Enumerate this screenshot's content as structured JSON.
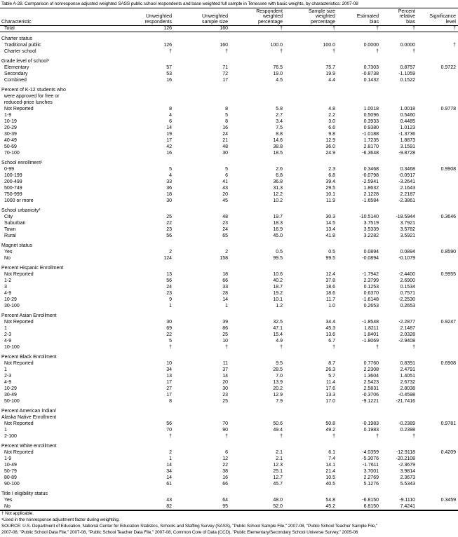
{
  "title": "Table A-28. Comparison of nonresponse adjusted weighted SASS public school respondents and base weighted full sample in Tenessee with basic weights, by characteristics: 2007-08",
  "headers": [
    "Characteristic",
    "Unweighted\nrespondents",
    "Unweighted\nsample size",
    "Respondent\nweighted\npercentage",
    "Sample size\nweighted\npercentage",
    "Estimated\nbias",
    "Percent\nrelative\nbias",
    "Significance\nlevel"
  ],
  "sections": [
    {
      "rows": [
        {
          "label": "Total",
          "cells": [
            "126",
            "160",
            "†",
            "†",
            "†",
            "†",
            "†"
          ]
        }
      ]
    },
    {
      "label_lines": [
        "Charter status"
      ],
      "rows": [
        {
          "label": "Traditional public",
          "cells": [
            "126",
            "160",
            "100.0",
            "100.0",
            "0.0000",
            "0.0000",
            "†"
          ]
        },
        {
          "label": "Charter school",
          "cells": [
            "†",
            "†",
            "†",
            "†",
            "†",
            "†",
            ""
          ]
        }
      ]
    },
    {
      "label_lines": [
        "Grade level of school"
      ],
      "footnote": "1",
      "rows": [
        {
          "label": "Elementary",
          "cells": [
            "57",
            "71",
            "76.5",
            "75.7",
            "0.7303",
            "0.8757",
            "0.9722"
          ]
        },
        {
          "label": "Secondary",
          "cells": [
            "53",
            "72",
            "19.0",
            "19.9",
            "-0.8738",
            "-1.1059",
            ""
          ]
        },
        {
          "label": "Combined",
          "cells": [
            "16",
            "17",
            "4.5",
            "4.4",
            "0.1432",
            "0.1522",
            ""
          ]
        }
      ]
    },
    {
      "label_lines": [
        "Percent of K-12 students who",
        "  were approved for free or",
        "  reduced-price lunches"
      ],
      "rows": [
        {
          "label": "Not Reported",
          "cells": [
            "8",
            "8",
            "5.8",
            "4.8",
            "1.0018",
            "1.0018",
            "0.9778"
          ]
        },
        {
          "label": "1-9",
          "cells": [
            "4",
            "5",
            "2.7",
            "2.2",
            "0.5096",
            "0.5460",
            ""
          ]
        },
        {
          "label": "10-19",
          "cells": [
            "6",
            "8",
            "3.4",
            "3.0",
            "0.3933",
            "0.4485",
            ""
          ]
        },
        {
          "label": "20-29",
          "cells": [
            "14",
            "16",
            "7.5",
            "6.6",
            "0.9380",
            "1.0123",
            ""
          ]
        },
        {
          "label": "30-39",
          "cells": [
            "19",
            "24",
            "8.8",
            "9.8",
            "-1.0188",
            "-1.3736",
            ""
          ]
        },
        {
          "label": "40-49",
          "cells": [
            "17",
            "21",
            "14.6",
            "12.9",
            "1.7235",
            "1.8873",
            ""
          ]
        },
        {
          "label": "50-69",
          "cells": [
            "42",
            "48",
            "38.8",
            "36.0",
            "2.8170",
            "3.1591",
            ""
          ]
        },
        {
          "label": "70-100",
          "cells": [
            "16",
            "30",
            "18.5",
            "24.9",
            "-6.3648",
            "-9.8728",
            ""
          ]
        }
      ]
    },
    {
      "label_lines": [
        "School enrollment"
      ],
      "footnote": "1",
      "rows": [
        {
          "label": "0-99",
          "cells": [
            "5",
            "5",
            "2.6",
            "2.3",
            "0.3468",
            "0.3468",
            "0.9908"
          ]
        },
        {
          "label": "100-199",
          "cells": [
            "4",
            "6",
            "6.8",
            "6.8",
            "-0.0798",
            "-0.0917",
            ""
          ]
        },
        {
          "label": "200-499",
          "cells": [
            "33",
            "41",
            "36.8",
            "39.4",
            "-2.5941",
            "-3.2641",
            ""
          ]
        },
        {
          "label": "500-749",
          "cells": [
            "36",
            "43",
            "31.3",
            "29.5",
            "1.8632",
            "2.1643",
            ""
          ]
        },
        {
          "label": "750-999",
          "cells": [
            "18",
            "20",
            "12.2",
            "10.1",
            "2.1228",
            "2.2187",
            ""
          ]
        },
        {
          "label": "1000 or more",
          "cells": [
            "30",
            "45",
            "10.2",
            "11.9",
            "-1.6584",
            "-2.3861",
            ""
          ]
        }
      ]
    },
    {
      "label_lines": [
        "School urbanicity"
      ],
      "footnote": "1",
      "rows": [
        {
          "label": "City",
          "cells": [
            "25",
            "48",
            "19.7",
            "30.3",
            "-10.5140",
            "-18.5944",
            "0.3646"
          ]
        },
        {
          "label": "Suburban",
          "cells": [
            "22",
            "23",
            "18.3",
            "14.5",
            "3.7519",
            "3.7921",
            ""
          ]
        },
        {
          "label": "Town",
          "cells": [
            "23",
            "24",
            "16.9",
            "13.4",
            "3.5339",
            "3.5782",
            ""
          ]
        },
        {
          "label": "Rural",
          "cells": [
            "56",
            "65",
            "45.0",
            "41.8",
            "3.2282",
            "3.5921",
            ""
          ]
        }
      ]
    },
    {
      "label_lines": [
        "Magnet status"
      ],
      "rows": [
        {
          "label": "Yes",
          "cells": [
            "2",
            "2",
            "0.5",
            "0.5",
            "0.0894",
            "0.0894",
            "0.8590"
          ]
        },
        {
          "label": "No",
          "cells": [
            "124",
            "158",
            "99.5",
            "99.5",
            "-0.0894",
            "-0.1079",
            ""
          ]
        }
      ]
    },
    {
      "label_lines": [
        "Percent Hispanic Enrollment"
      ],
      "rows": [
        {
          "label": "Not Reported",
          "cells": [
            "13",
            "18",
            "10.6",
            "12.4",
            "-1.7942",
            "-2.4400",
            "0.9955"
          ]
        },
        {
          "label": "1-2",
          "cells": [
            "56",
            "66",
            "40.2",
            "37.8",
            "2.3799",
            "2.6900",
            ""
          ]
        },
        {
          "label": "3",
          "cells": [
            "24",
            "33",
            "18.7",
            "18.6",
            "0.1253",
            "0.1534",
            ""
          ]
        },
        {
          "label": "4-9",
          "cells": [
            "23",
            "28",
            "19.2",
            "18.6",
            "0.6370",
            "0.7571",
            ""
          ]
        },
        {
          "label": "10-29",
          "cells": [
            "9",
            "14",
            "10.1",
            "11.7",
            "-1.6148",
            "-2.2530",
            ""
          ]
        },
        {
          "label": "30-100",
          "cells": [
            "1",
            "1",
            "1.2",
            "1.0",
            "0.2653",
            "0.2653",
            ""
          ]
        }
      ]
    },
    {
      "label_lines": [
        "Percent Asian Enrollment"
      ],
      "rows": [
        {
          "label": "Not Reported",
          "cells": [
            "30",
            "39",
            "32.5",
            "34.4",
            "-1.8548",
            "-2.2877",
            "0.9247"
          ]
        },
        {
          "label": "1",
          "cells": [
            "69",
            "86",
            "47.1",
            "45.3",
            "1.8211",
            "2.1487",
            ""
          ]
        },
        {
          "label": "2-3",
          "cells": [
            "22",
            "25",
            "15.4",
            "13.6",
            "1.8401",
            "2.0328",
            ""
          ]
        },
        {
          "label": "4-9",
          "cells": [
            "5",
            "10",
            "4.9",
            "6.7",
            "-1.8069",
            "-2.9408",
            ""
          ]
        },
        {
          "label": "10-100",
          "cells": [
            "†",
            "†",
            "†",
            "†",
            "†",
            "†",
            ""
          ]
        }
      ]
    },
    {
      "label_lines": [
        "Percent Black Enrollment"
      ],
      "rows": [
        {
          "label": "Not Reported",
          "cells": [
            "10",
            "11",
            "9.5",
            "8.7",
            "0.7760",
            "0.8391",
            "0.6908"
          ]
        },
        {
          "label": "1",
          "cells": [
            "34",
            "37",
            "28.5",
            "26.3",
            "2.2308",
            "2.4791",
            ""
          ]
        },
        {
          "label": "2-3",
          "cells": [
            "13",
            "14",
            "7.0",
            "5.7",
            "1.3604",
            "1.4051",
            ""
          ]
        },
        {
          "label": "4-9",
          "cells": [
            "17",
            "20",
            "13.9",
            "11.4",
            "2.5423",
            "2.6732",
            ""
          ]
        },
        {
          "label": "10-29",
          "cells": [
            "27",
            "30",
            "20.2",
            "17.6",
            "2.5831",
            "2.8038",
            ""
          ]
        },
        {
          "label": "30-49",
          "cells": [
            "17",
            "23",
            "12.9",
            "13.3",
            "-0.3706",
            "-0.4598",
            ""
          ]
        },
        {
          "label": "50-100",
          "cells": [
            "8",
            "25",
            "7.9",
            "17.0",
            "-9.1221",
            "-21.7416",
            ""
          ]
        }
      ]
    },
    {
      "label_lines": [
        "Percent American Indian/",
        "Alaska Native Enrollment"
      ],
      "rows": [
        {
          "label": "Not Reported",
          "cells": [
            "56",
            "70",
            "50.6",
            "50.8",
            "-0.1983",
            "-0.2389",
            "0.9781"
          ]
        },
        {
          "label": "1",
          "cells": [
            "70",
            "90",
            "49.4",
            "49.2",
            "0.1983",
            "0.2398",
            ""
          ]
        },
        {
          "label": "2-100",
          "cells": [
            "†",
            "†",
            "†",
            "†",
            "†",
            "†",
            ""
          ]
        }
      ]
    },
    {
      "label_lines": [
        "Percent White enrollment"
      ],
      "rows": [
        {
          "label": "Not Reported",
          "cells": [
            "2",
            "6",
            "2.1",
            "6.1",
            "-4.0359",
            "-12.9118",
            "0.4209"
          ]
        },
        {
          "label": "1-9",
          "cells": [
            "1",
            "12",
            "2.1",
            "7.4",
            "-5.3076",
            "-20.2108",
            ""
          ]
        },
        {
          "label": "10-49",
          "cells": [
            "14",
            "22",
            "12.3",
            "14.1",
            "-1.7611",
            "-2.3679",
            ""
          ]
        },
        {
          "label": "50-79",
          "cells": [
            "34",
            "38",
            "25.1",
            "21.4",
            "3.7001",
            "3.9814",
            ""
          ]
        },
        {
          "label": "80-89",
          "cells": [
            "14",
            "16",
            "12.7",
            "10.5",
            "2.2769",
            "2.3673",
            ""
          ]
        },
        {
          "label": "90-100",
          "cells": [
            "61",
            "66",
            "45.7",
            "40.5",
            "5.1276",
            "5.5343",
            ""
          ]
        }
      ]
    },
    {
      "label_lines": [
        "Title I eligibility status"
      ],
      "rows": [
        {
          "label": "Yes",
          "cells": [
            "43",
            "64",
            "48.0",
            "54.8",
            "-6.8150",
            "-9.1110",
            "0.3459"
          ]
        },
        {
          "label": "No",
          "cells": [
            "82",
            "95",
            "52.0",
            "45.2",
            "6.8150",
            "7.4241",
            ""
          ]
        }
      ]
    }
  ],
  "footnotes": [
    "† Not applicable.",
    "Used in the nonresponse adjustment factor during weighting.",
    "SOURCE: U.S. Department of Education, National Center for Education Statistics, Schools and Staffing Survey (SASS), \"Public School Sample File,\" 2007-08, \"Public School Teacher Sample File,\"",
    "2007-08, \"Public School Data File,\" 2007-08, \"Public School Teacher Data File,\" 2007-08, Common Core of Data (CCD), \"Public Elementary/Secondary School Universe Survey,\" 2005-06"
  ],
  "footnote_mark": "1"
}
